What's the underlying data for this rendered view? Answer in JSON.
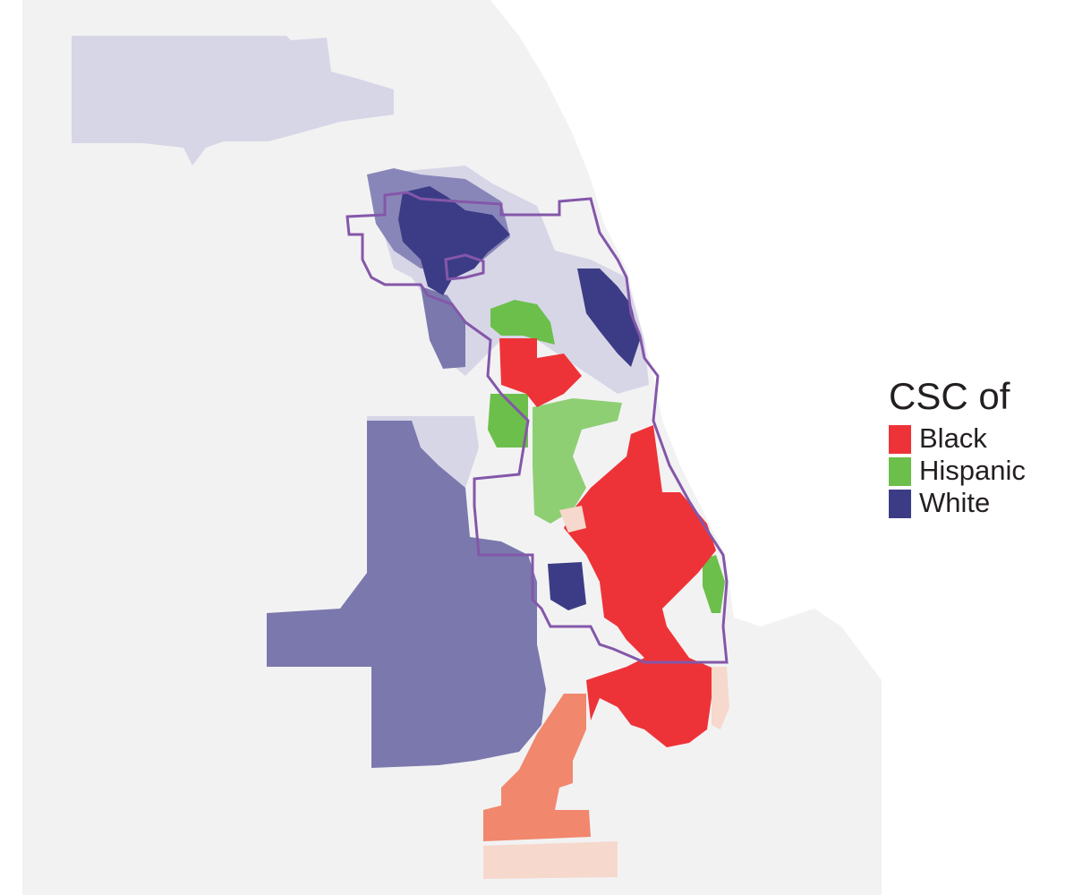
{
  "legend": {
    "title": "CSC of",
    "items": [
      {
        "label": "Black",
        "color": "#ee3338"
      },
      {
        "label": "Hispanic",
        "color": "#6cbf4b"
      },
      {
        "label": "White",
        "color": "#3c3c86"
      }
    ]
  }
}
